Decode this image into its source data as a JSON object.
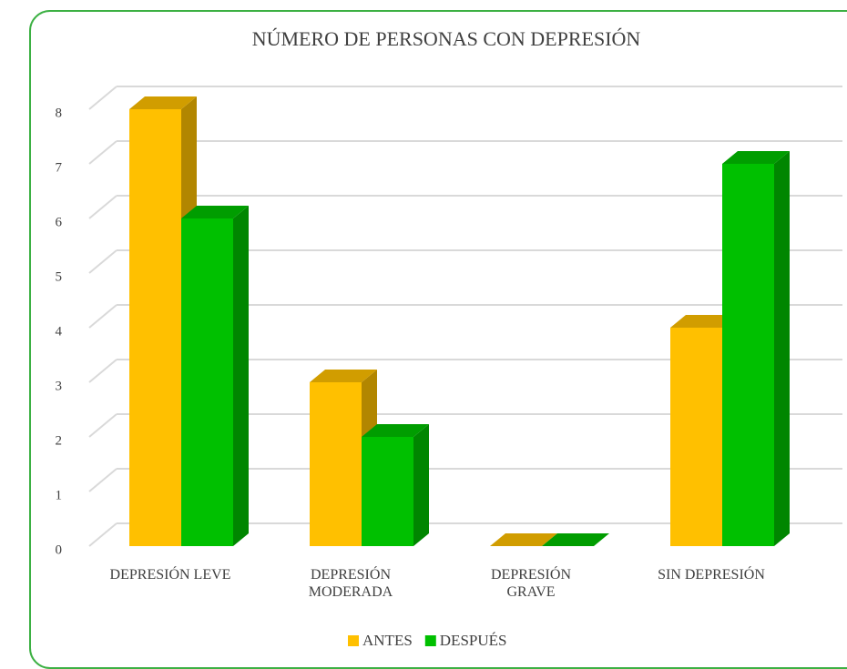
{
  "chart_data": {
    "type": "bar3d",
    "title": "NÚMERO DE PERSONAS CON DEPRESIÓN",
    "categories": [
      "DEPRESIÓN LEVE",
      "DEPRESIÓN MODERADA",
      "DEPRESIÓN GRAVE",
      "SIN DEPRESIÓN"
    ],
    "series": [
      {
        "name": "ANTES",
        "color": "#ffc000",
        "values": [
          8,
          3,
          0,
          4
        ]
      },
      {
        "name": "DESPUÉS",
        "color": "#00c000",
        "values": [
          6,
          2,
          0,
          7
        ]
      }
    ],
    "ylim": [
      0,
      8
    ],
    "yticks": [
      0,
      1,
      2,
      3,
      4,
      5,
      6,
      7,
      8
    ],
    "grid": true,
    "legend": "bottom"
  }
}
